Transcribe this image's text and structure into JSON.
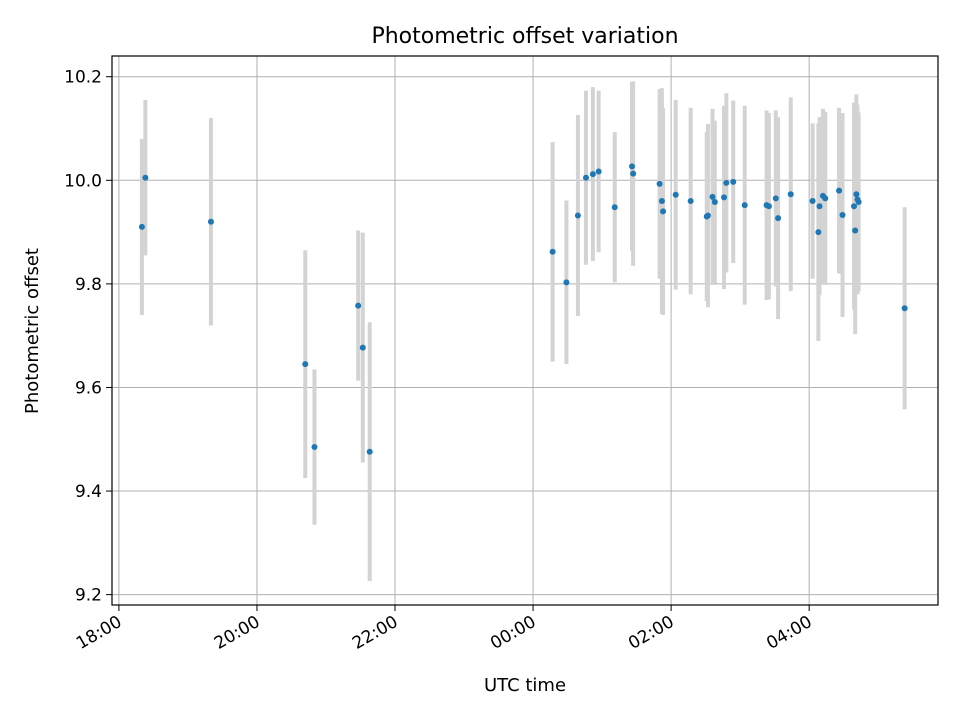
{
  "chart_data": {
    "type": "scatter",
    "title": "Photometric offset variation",
    "xlabel": "UTC time",
    "ylabel": "Photometric offset",
    "x_is_time": true,
    "xlim": [
      "17:54",
      "05:52"
    ],
    "ylim": [
      9.18,
      10.24
    ],
    "x_ticks": [
      "18:00",
      "20:00",
      "22:00",
      "00:00",
      "02:00",
      "04:00"
    ],
    "y_ticks": [
      "9.2",
      "9.4",
      "9.6",
      "9.8",
      "10.0",
      "10.2"
    ],
    "grid": true,
    "marker_color": "#1f77b4",
    "errorbar_color": "#d3d3d3",
    "series": [
      {
        "x": [
          "18:20",
          "18:23",
          "19:20",
          "20:42",
          "20:50",
          "21:28",
          "21:32",
          "21:38",
          "00:17",
          "00:29",
          "00:39",
          "00:46",
          "00:52",
          "00:57",
          "01:11",
          "01:26",
          "01:27",
          "01:50",
          "01:52",
          "01:53",
          "02:04",
          "02:17",
          "02:31",
          "02:32",
          "02:36",
          "02:38",
          "02:46",
          "02:48",
          "02:54",
          "03:04",
          "03:23",
          "03:25",
          "03:31",
          "03:33",
          "03:44",
          "04:03",
          "04:08",
          "04:09",
          "04:12",
          "04:14",
          "04:26",
          "04:29",
          "04:39",
          "04:40",
          "04:41",
          "04:42",
          "04:43",
          "05:23"
        ],
        "y": [
          9.91,
          10.005,
          9.92,
          9.645,
          9.485,
          9.758,
          9.677,
          9.476,
          9.862,
          9.803,
          9.932,
          10.005,
          10.012,
          10.017,
          9.948,
          10.027,
          10.013,
          9.993,
          9.96,
          9.94,
          9.972,
          9.96,
          9.93,
          9.932,
          9.968,
          9.958,
          9.967,
          9.995,
          9.997,
          9.952,
          9.952,
          9.95,
          9.965,
          9.927,
          9.973,
          9.96,
          9.9,
          9.95,
          9.97,
          9.965,
          9.98,
          9.933,
          9.95,
          9.903,
          9.973,
          9.963,
          9.958,
          9.753
        ],
        "yerr": [
          0.17,
          0.15,
          0.2,
          0.22,
          0.15,
          0.145,
          0.222,
          0.25,
          0.212,
          0.158,
          0.194,
          0.168,
          0.168,
          0.156,
          0.145,
          0.163,
          0.178,
          0.183,
          0.218,
          0.2,
          0.183,
          0.18,
          0.163,
          0.177,
          0.17,
          0.157,
          0.177,
          0.173,
          0.157,
          0.192,
          0.183,
          0.18,
          0.17,
          0.195,
          0.187,
          0.15,
          0.21,
          0.172,
          0.168,
          0.167,
          0.16,
          0.197,
          0.2,
          0.2,
          0.193,
          0.183,
          0.173,
          0.195
        ]
      }
    ]
  }
}
